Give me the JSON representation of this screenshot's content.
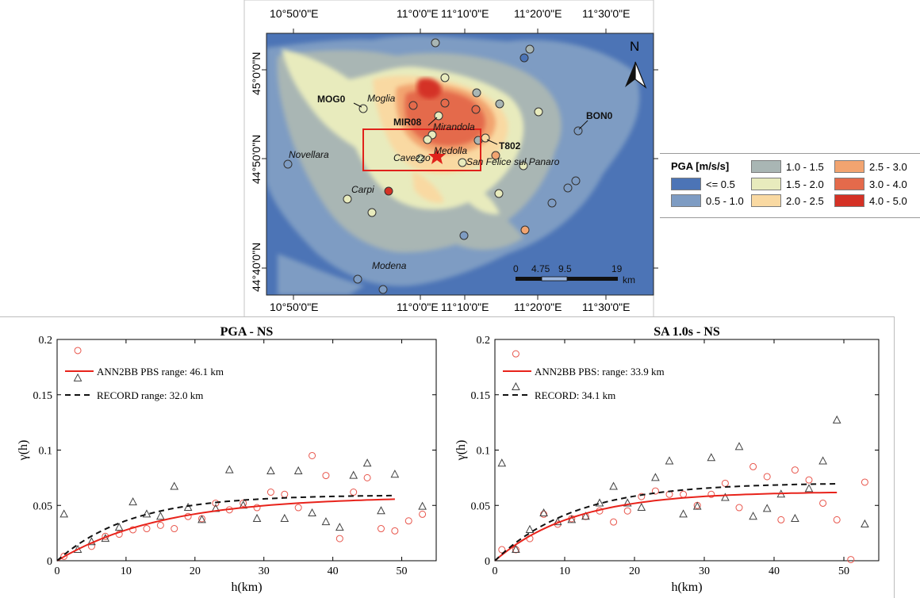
{
  "map": {
    "lon_labels": [
      "10°50'0\"E",
      "11°0'0\"E",
      "11°10'0\"E",
      "11°20'0\"E",
      "11°30'0\"E"
    ],
    "lat_labels": [
      "45°0'0\"N",
      "44°50'0\"N",
      "44°40'0\"N"
    ],
    "north": "N",
    "towns": [
      "Moglia",
      "Mirandola",
      "Novellara",
      "Cavezzo",
      "Medolla",
      "San Felice sul Panaro",
      "Carpi",
      "Modena"
    ],
    "stations": [
      "MOG0",
      "MIR08",
      "BON0",
      "T802"
    ],
    "scalebar": {
      "ticks": [
        "0",
        "4.75",
        "9.5",
        "19"
      ],
      "unit": "km"
    },
    "colors": {
      "c1": "#4c74b6",
      "c2": "#7e9cc3",
      "c3": "#a9b6b4",
      "c4": "#e8ebbd",
      "c5": "#f9d9a2",
      "c6": "#f2a470",
      "c7": "#e46a4b",
      "c8": "#d43125"
    }
  },
  "legend": {
    "title": "PGA [m/s/s]",
    "items": [
      {
        "label": "<= 0.5",
        "color": "#4c74b6"
      },
      {
        "label": "0.5 - 1.0",
        "color": "#7e9cc3"
      },
      {
        "label": "1.0 - 1.5",
        "color": "#a9b6b4"
      },
      {
        "label": "1.5 - 2.0",
        "color": "#e8ebbd"
      },
      {
        "label": "2.0 - 2.5",
        "color": "#f9d9a2"
      },
      {
        "label": "2.5 - 3.0",
        "color": "#f2a470"
      },
      {
        "label": "3.0 - 4.0",
        "color": "#e46a4b"
      },
      {
        "label": "4.0 - 5.0",
        "color": "#d43125"
      }
    ]
  },
  "chart_data": [
    {
      "type": "scatter",
      "title": "PGA - NS",
      "xlabel": "h(km)",
      "ylabel": "γ(h)",
      "xlim": [
        0,
        55
      ],
      "ylim": [
        0,
        0.2
      ],
      "xticks": [
        0,
        10,
        20,
        30,
        40,
        50
      ],
      "yticks": [
        0,
        0.05,
        0.1,
        0.15,
        0.2
      ],
      "ytick_labels": [
        "0",
        "0.05",
        "0.1",
        "0.15",
        "0.2"
      ],
      "legend": [
        "ANN2BB PBS range: 46.1 km",
        "RECORD range: 32.0 km"
      ],
      "circles": {
        "color": "#e8554b",
        "points": [
          [
            1,
            0.004
          ],
          [
            3,
            0.19
          ],
          [
            5,
            0.013
          ],
          [
            7,
            0.022
          ],
          [
            9,
            0.024
          ],
          [
            11,
            0.028
          ],
          [
            13,
            0.029
          ],
          [
            15,
            0.032
          ],
          [
            17,
            0.029
          ],
          [
            19,
            0.04
          ],
          [
            21,
            0.038
          ],
          [
            23,
            0.052
          ],
          [
            25,
            0.046
          ],
          [
            27,
            0.052
          ],
          [
            29,
            0.048
          ],
          [
            31,
            0.062
          ],
          [
            33,
            0.06
          ],
          [
            35,
            0.048
          ],
          [
            37,
            0.095
          ],
          [
            39,
            0.077
          ],
          [
            41,
            0.02
          ],
          [
            43,
            0.062
          ],
          [
            45,
            0.075
          ],
          [
            47,
            0.029
          ],
          [
            49,
            0.027
          ],
          [
            51,
            0.036
          ],
          [
            53,
            0.042
          ]
        ]
      },
      "triangles": {
        "color": "#404040",
        "points": [
          [
            1,
            0.042
          ],
          [
            3,
            0.165
          ],
          [
            3,
            0.01
          ],
          [
            5,
            0.017
          ],
          [
            7,
            0.02
          ],
          [
            9,
            0.03
          ],
          [
            11,
            0.053
          ],
          [
            13,
            0.042
          ],
          [
            15,
            0.04
          ],
          [
            17,
            0.067
          ],
          [
            19,
            0.048
          ],
          [
            21,
            0.037
          ],
          [
            23,
            0.047
          ],
          [
            25,
            0.082
          ],
          [
            27,
            0.05
          ],
          [
            29,
            0.038
          ],
          [
            31,
            0.081
          ],
          [
            33,
            0.038
          ],
          [
            35,
            0.081
          ],
          [
            37,
            0.043
          ],
          [
            39,
            0.035
          ],
          [
            41,
            0.03
          ],
          [
            43,
            0.077
          ],
          [
            45,
            0.088
          ],
          [
            47,
            0.045
          ],
          [
            49,
            0.078
          ],
          [
            53,
            0.049
          ]
        ]
      },
      "fit_red": {
        "sill": 0.058,
        "range": 46.1,
        "xmax": 49
      },
      "fit_black": {
        "sill": 0.0595,
        "range": 32.0,
        "xmax": 49
      }
    },
    {
      "type": "scatter",
      "title": "SA 1.0s - NS",
      "xlabel": "h(km)",
      "ylabel": "γ(h)",
      "xlim": [
        0,
        55
      ],
      "ylim": [
        0,
        0.2
      ],
      "xticks": [
        0,
        10,
        20,
        30,
        40,
        50
      ],
      "yticks": [
        0,
        0.05,
        0.1,
        0.15,
        0.2
      ],
      "ytick_labels": [
        "0",
        "0.05",
        "0.1",
        "0.15",
        "0.2"
      ],
      "legend": [
        "ANN2BB PBS: range: 33.9 km",
        "RECORD: 34.1 km"
      ],
      "circles": {
        "color": "#e8554b",
        "points": [
          [
            1,
            0.01
          ],
          [
            3,
            0.187
          ],
          [
            3,
            0.01
          ],
          [
            5,
            0.02
          ],
          [
            7,
            0.042
          ],
          [
            9,
            0.033
          ],
          [
            11,
            0.038
          ],
          [
            13,
            0.04
          ],
          [
            15,
            0.045
          ],
          [
            17,
            0.035
          ],
          [
            19,
            0.045
          ],
          [
            21,
            0.058
          ],
          [
            23,
            0.063
          ],
          [
            25,
            0.06
          ],
          [
            27,
            0.06
          ],
          [
            29,
            0.05
          ],
          [
            31,
            0.06
          ],
          [
            33,
            0.07
          ],
          [
            35,
            0.048
          ],
          [
            37,
            0.085
          ],
          [
            39,
            0.076
          ],
          [
            41,
            0.037
          ],
          [
            43,
            0.082
          ],
          [
            45,
            0.073
          ],
          [
            47,
            0.052
          ],
          [
            49,
            0.037
          ],
          [
            51,
            0.001
          ],
          [
            53,
            0.071
          ]
        ]
      },
      "triangles": {
        "color": "#404040",
        "points": [
          [
            1,
            0.088
          ],
          [
            3,
            0.157
          ],
          [
            3,
            0.01
          ],
          [
            5,
            0.028
          ],
          [
            7,
            0.043
          ],
          [
            9,
            0.035
          ],
          [
            11,
            0.037
          ],
          [
            13,
            0.04
          ],
          [
            15,
            0.052
          ],
          [
            17,
            0.067
          ],
          [
            19,
            0.052
          ],
          [
            21,
            0.048
          ],
          [
            23,
            0.075
          ],
          [
            25,
            0.09
          ],
          [
            27,
            0.042
          ],
          [
            29,
            0.049
          ],
          [
            31,
            0.093
          ],
          [
            33,
            0.057
          ],
          [
            35,
            0.103
          ],
          [
            37,
            0.04
          ],
          [
            39,
            0.047
          ],
          [
            41,
            0.06
          ],
          [
            43,
            0.038
          ],
          [
            45,
            0.065
          ],
          [
            47,
            0.09
          ],
          [
            49,
            0.127
          ],
          [
            53,
            0.033
          ]
        ]
      },
      "fit_red": {
        "sill": 0.0625,
        "range": 33.9,
        "xmax": 49
      },
      "fit_black": {
        "sill": 0.0705,
        "range": 34.1,
        "xmax": 49
      }
    }
  ]
}
